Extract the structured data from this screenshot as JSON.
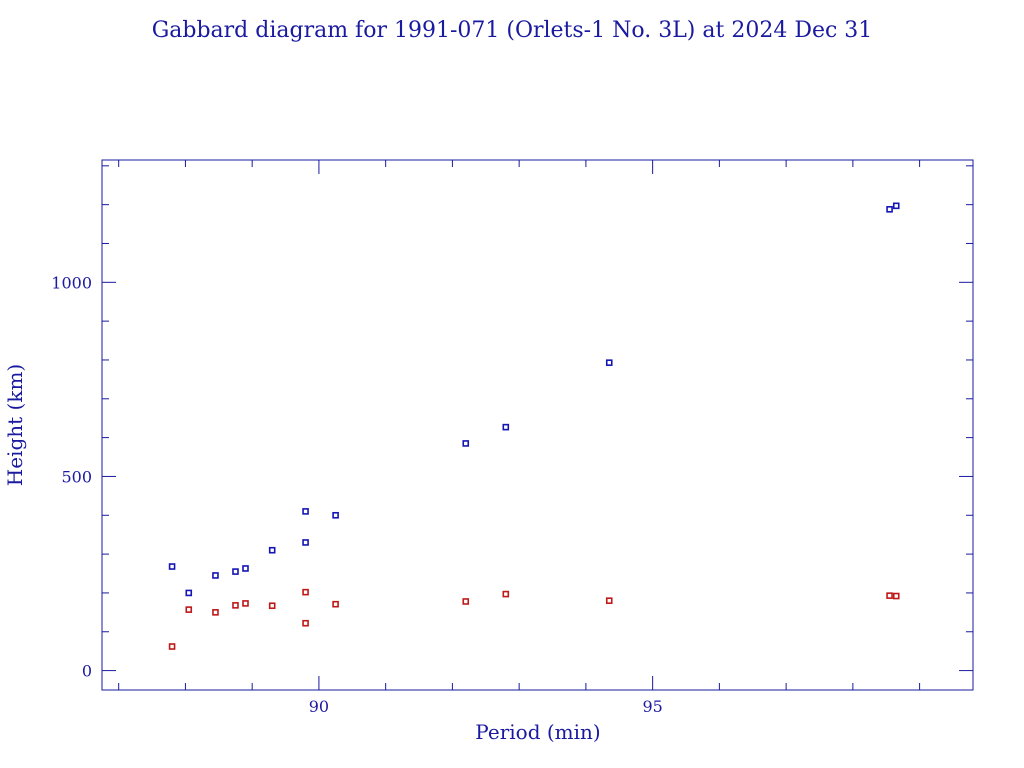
{
  "chart_data": {
    "type": "scatter",
    "title": "Gabbard diagram for 1991-071 (Orlets-1 No. 3L) at 2024 Dec 31",
    "xlabel": "Period (min)",
    "ylabel": "Height (km)",
    "xlim": [
      86.75,
      99.8
    ],
    "ylim": [
      -50,
      1315
    ],
    "xticks": [
      90,
      95
    ],
    "yticks": [
      0,
      500,
      1000
    ],
    "grid": false,
    "colors": {
      "apogee": "#1515b5",
      "perigee": "#c01818",
      "axis": "#1a1aa0"
    },
    "series": [
      {
        "role": "apogee",
        "points": [
          [
            87.8,
            268
          ],
          [
            88.05,
            200
          ],
          [
            88.45,
            245
          ],
          [
            88.75,
            255
          ],
          [
            88.9,
            263
          ],
          [
            89.3,
            310
          ],
          [
            89.8,
            330
          ],
          [
            89.8,
            410
          ],
          [
            90.25,
            400
          ],
          [
            92.2,
            585
          ],
          [
            92.8,
            627
          ],
          [
            94.35,
            793
          ],
          [
            98.55,
            1188
          ],
          [
            98.65,
            1197
          ]
        ]
      },
      {
        "role": "perigee",
        "points": [
          [
            87.8,
            62
          ],
          [
            88.05,
            157
          ],
          [
            88.45,
            150
          ],
          [
            88.75,
            168
          ],
          [
            88.9,
            173
          ],
          [
            89.3,
            167
          ],
          [
            89.8,
            122
          ],
          [
            89.8,
            202
          ],
          [
            90.25,
            171
          ],
          [
            92.2,
            178
          ],
          [
            92.8,
            197
          ],
          [
            94.35,
            180
          ],
          [
            98.55,
            193
          ],
          [
            98.65,
            192
          ]
        ]
      }
    ]
  }
}
